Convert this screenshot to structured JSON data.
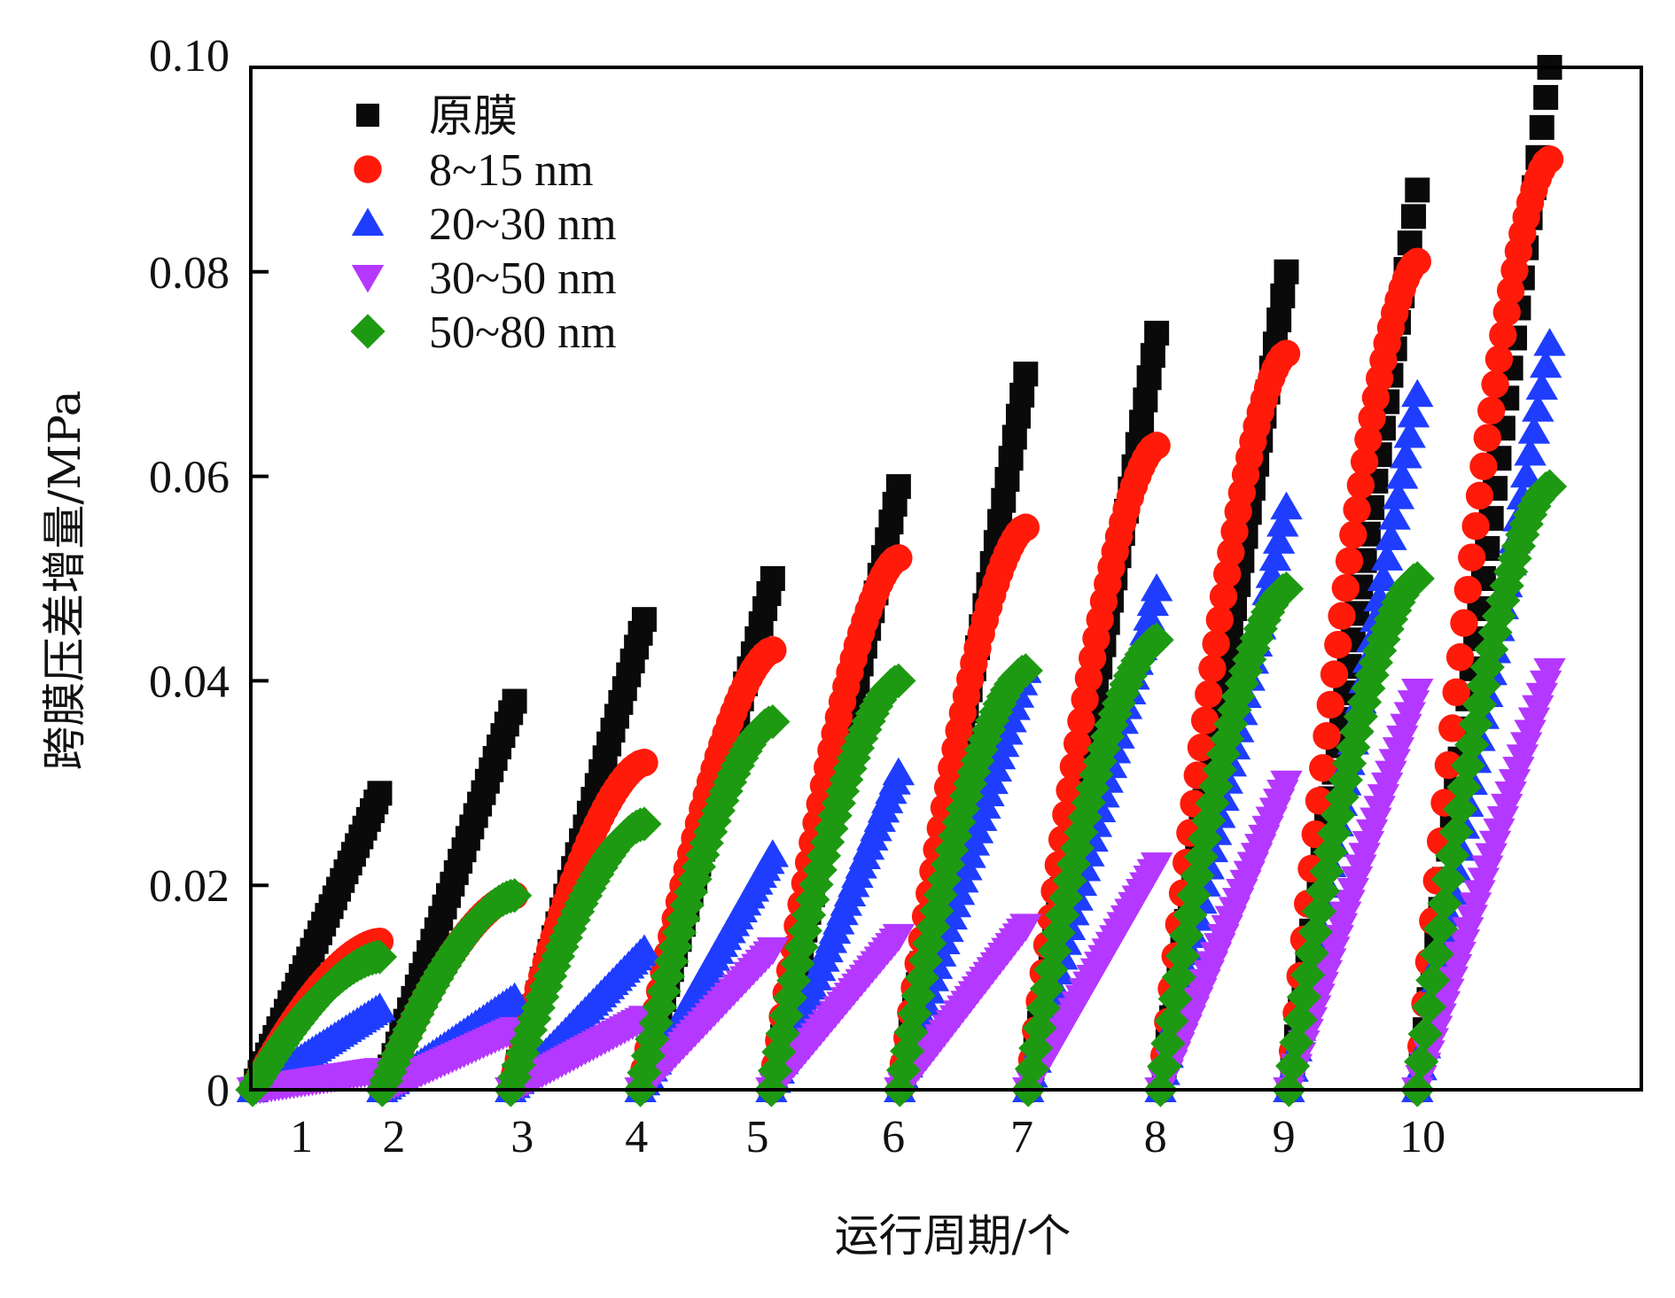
{
  "chart_data": {
    "type": "scatter",
    "title": "",
    "xlabel": "运行周期/个",
    "ylabel": "跨膜压差增量/MPa",
    "xlim": [
      0,
      10.4
    ],
    "ylim": [
      0,
      0.1
    ],
    "grid": false,
    "legend_position": "top-left",
    "y_ticks": [
      {
        "value": 0,
        "label": "0"
      },
      {
        "value": 0.02,
        "label": "0.02"
      },
      {
        "value": 0.04,
        "label": "0.04"
      },
      {
        "value": 0.06,
        "label": "0.06"
      },
      {
        "value": 0.08,
        "label": "0.08"
      },
      {
        "value": 0.1,
        "label": "0.10"
      }
    ],
    "x_ticks": [
      {
        "value": 0.38,
        "label": "1"
      },
      {
        "value": 1.1,
        "label": "2"
      },
      {
        "value": 2.1,
        "label": "3"
      },
      {
        "value": 2.99,
        "label": "4"
      },
      {
        "value": 3.93,
        "label": "5"
      },
      {
        "value": 4.99,
        "label": "6"
      },
      {
        "value": 5.99,
        "label": "7"
      },
      {
        "value": 7.03,
        "label": "8"
      },
      {
        "value": 8.03,
        "label": "9"
      },
      {
        "value": 9.11,
        "label": "10"
      }
    ],
    "cycles": [
      {
        "cycle": 1,
        "start": 0.0,
        "end": 0.99
      },
      {
        "cycle": 2,
        "start": 1.01,
        "end": 2.04
      },
      {
        "cycle": 3,
        "start": 2.01,
        "end": 3.05
      },
      {
        "cycle": 4,
        "start": 3.02,
        "end": 4.05
      },
      {
        "cycle": 5,
        "start": 4.04,
        "end": 5.03
      },
      {
        "cycle": 6,
        "start": 5.04,
        "end": 6.02
      },
      {
        "cycle": 7,
        "start": 6.04,
        "end": 7.04
      },
      {
        "cycle": 8,
        "start": 7.07,
        "end": 8.05
      },
      {
        "cycle": 9,
        "start": 8.07,
        "end": 9.07
      },
      {
        "cycle": 10,
        "start": 9.07,
        "end": 10.1
      }
    ],
    "series": [
      {
        "name": "原膜",
        "marker": "square",
        "color": "#0a0a0a",
        "shape": "linear",
        "end_values": [
          0.029,
          0.038,
          0.046,
          0.05,
          0.059,
          0.07,
          0.074,
          0.08,
          0.088,
          0.1
        ]
      },
      {
        "name": "8~15 nm",
        "marker": "circle",
        "color": "#ff1a0a",
        "shape": "concave",
        "end_values": [
          0.0145,
          0.019,
          0.032,
          0.043,
          0.052,
          0.055,
          0.063,
          0.072,
          0.081,
          0.091
        ]
      },
      {
        "name": "20~30 nm",
        "marker": "triangle-up",
        "color": "#1f3dff",
        "shape": "linear",
        "end_values": [
          0.008,
          0.009,
          0.0137,
          0.023,
          0.031,
          0.041,
          0.049,
          0.057,
          0.068,
          0.073
        ]
      },
      {
        "name": "30~50 nm",
        "marker": "triangle-down",
        "color": "#b438ff",
        "shape": "linear",
        "end_values": [
          0.0019,
          0.0059,
          0.007,
          0.0137,
          0.015,
          0.016,
          0.022,
          0.03,
          0.039,
          0.041
        ]
      },
      {
        "name": "50~80 nm",
        "marker": "diamond",
        "color": "#1e9a12",
        "shape": "concave",
        "end_values": [
          0.013,
          0.019,
          0.026,
          0.036,
          0.04,
          0.041,
          0.044,
          0.049,
          0.05,
          0.059
        ]
      }
    ]
  }
}
